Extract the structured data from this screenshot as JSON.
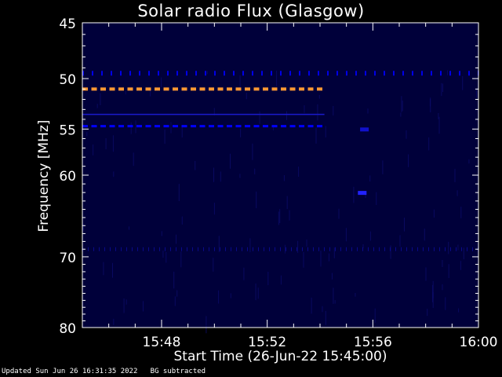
{
  "chart_data": {
    "type": "heatmap",
    "title": "Solar radio Flux (Glasgow)",
    "xlabel": "Start Time (26-Jun-22 15:45:00)",
    "ylabel": "Frequency [MHz]",
    "xlim": [
      "15:45:00",
      "16:00:00"
    ],
    "ylim": [
      45,
      80
    ],
    "y_scale": "log",
    "x_ticks": [
      "15:48",
      "15:52",
      "15:56",
      "16:00"
    ],
    "y_ticks": [
      45,
      50,
      55,
      60,
      70,
      80
    ],
    "background_color": "#00003a",
    "features": [
      {
        "kind": "band",
        "frequency": 49.5,
        "start": "15:45:00",
        "end": "16:00:00",
        "style": "dashed",
        "color": "#0000e6"
      },
      {
        "kind": "band",
        "frequency": 51.0,
        "start": "15:45:00",
        "end": "15:54:10",
        "style": "dashed",
        "color": "#ff9933"
      },
      {
        "kind": "band",
        "frequency": 53.5,
        "start": "15:45:00",
        "end": "15:54:10",
        "style": "solid-faint",
        "color": "#1a1acc"
      },
      {
        "kind": "band",
        "frequency": 54.7,
        "start": "15:45:00",
        "end": "15:54:10",
        "style": "dashed",
        "color": "#0000ff"
      },
      {
        "kind": "band",
        "frequency": 69.0,
        "start": "15:45:00",
        "end": "16:00:00",
        "style": "speckle",
        "color": "#0a0a8a"
      },
      {
        "kind": "spot",
        "frequency": 62.0,
        "time": "15:55:35",
        "color": "#2222ff"
      },
      {
        "kind": "spot",
        "frequency": 55.0,
        "time": "15:55:40",
        "color": "#1111cc"
      }
    ]
  },
  "footer": "Updated Sun Jun 26 16:31:35 2022   BG subtracted"
}
